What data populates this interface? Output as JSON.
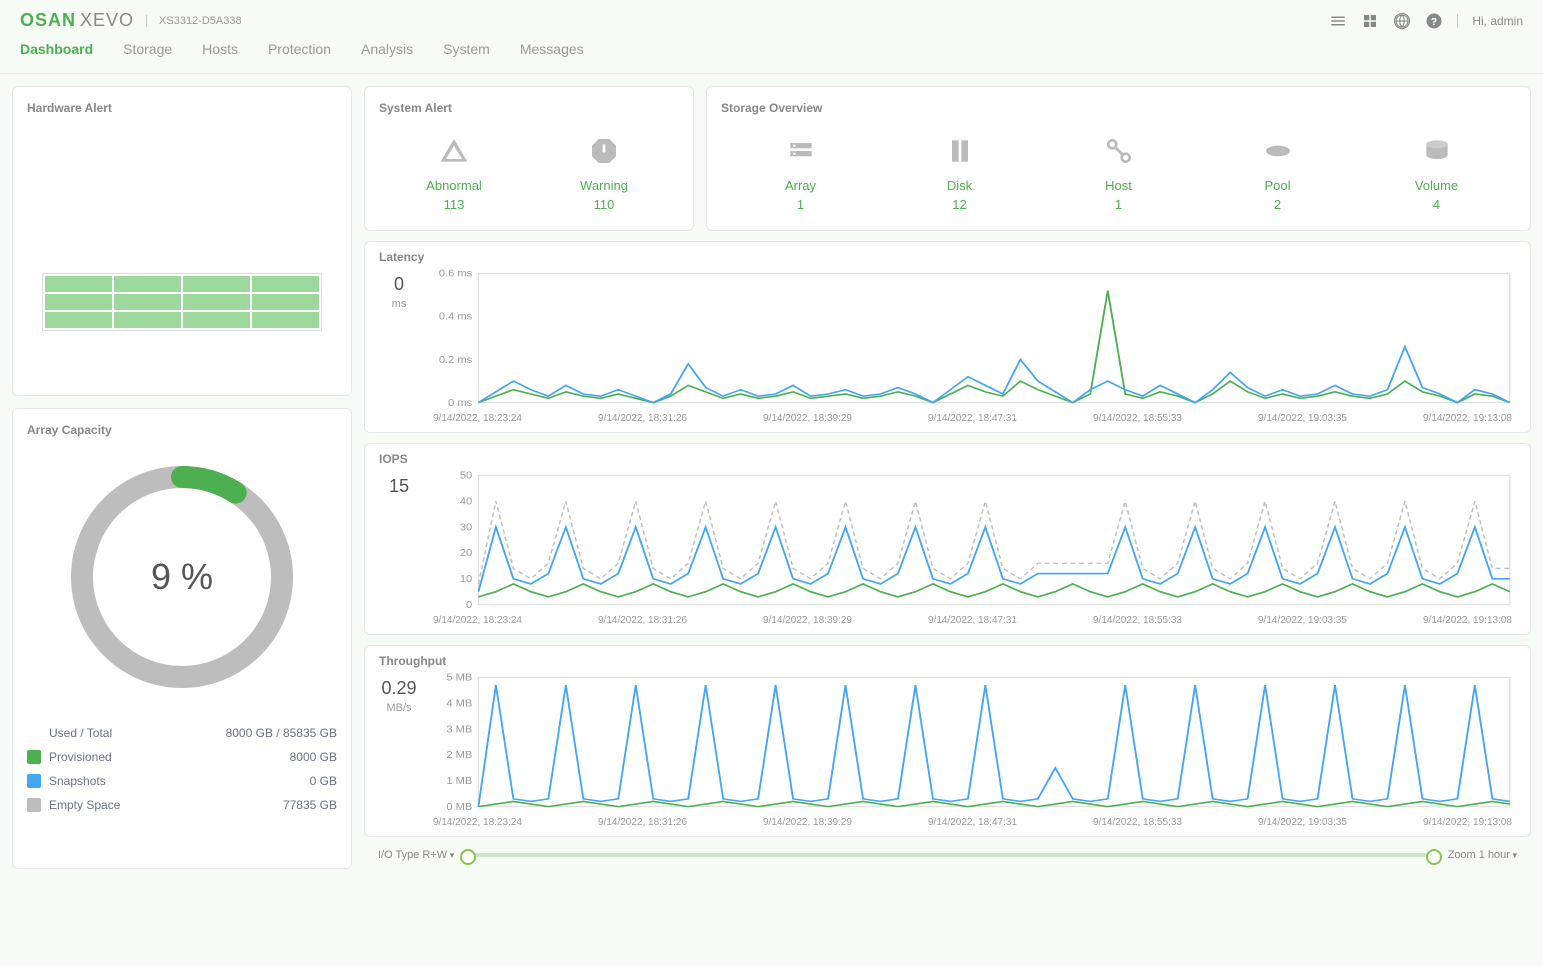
{
  "header": {
    "brand": "OSAN",
    "brand_sub": "XEVO",
    "model": "XS3312-D5A338",
    "greeting": "Hi, admin"
  },
  "nav": {
    "items": [
      "Dashboard",
      "Storage",
      "Hosts",
      "Protection",
      "Analysis",
      "System",
      "Messages"
    ],
    "active_index": 0
  },
  "hardware_alert": {
    "title": "Hardware Alert",
    "grid": {
      "rows": 3,
      "cols": 4,
      "cell_color": "#9dd89d"
    }
  },
  "system_alert": {
    "title": "System Alert",
    "items": [
      {
        "name": "Abnormal",
        "value": "113",
        "icon": "warning-triangle"
      },
      {
        "name": "Warning",
        "value": "110",
        "icon": "warning-octagon"
      }
    ]
  },
  "storage_overview": {
    "title": "Storage Overview",
    "items": [
      {
        "name": "Array",
        "value": "1",
        "icon": "array"
      },
      {
        "name": "Disk",
        "value": "12",
        "icon": "disk"
      },
      {
        "name": "Host",
        "value": "1",
        "icon": "host"
      },
      {
        "name": "Pool",
        "value": "2",
        "icon": "pool"
      },
      {
        "name": "Volume",
        "value": "4",
        "icon": "volume"
      }
    ]
  },
  "capacity": {
    "title": "Array Capacity",
    "percent_label": "9 %",
    "percent": 9,
    "used_total_label": "Used / Total",
    "used_total_value": "8000 GB / 85835 GB",
    "legend": [
      {
        "label": "Provisioned",
        "value": "8000 GB",
        "color": "#4caf50"
      },
      {
        "label": "Snapshots",
        "value": "0 GB",
        "color": "#42a5f5"
      },
      {
        "label": "Empty Space",
        "value": "77835 GB",
        "color": "#bdbdbd"
      }
    ],
    "donut": {
      "stroke_width": 22,
      "bg_color": "#bdbdbd",
      "fg_color": "#4caf50"
    }
  },
  "charts": {
    "x_labels": [
      "9/14/2022, 18:23:24",
      "9/14/2022, 18:31:26",
      "9/14/2022, 18:39:29",
      "9/14/2022, 18:47:31",
      "9/14/2022, 18:55:33",
      "9/14/2022, 19:03:35",
      "9/14/2022, 19:13:08"
    ],
    "latency": {
      "title": "Latency",
      "current": "0",
      "unit": "ms",
      "ylim": [
        0,
        0.6
      ],
      "ytick_step": 0.2,
      "ytick_suffix": " ms",
      "series": [
        {
          "name": "green",
          "color": "#4caf50",
          "width": 1.5,
          "values": [
            0,
            0.03,
            0.06,
            0.04,
            0.02,
            0.05,
            0.03,
            0.02,
            0.04,
            0.02,
            0,
            0.03,
            0.08,
            0.05,
            0.02,
            0.04,
            0.02,
            0.03,
            0.05,
            0.02,
            0.03,
            0.04,
            0.02,
            0.03,
            0.05,
            0.03,
            0,
            0.04,
            0.08,
            0.05,
            0.03,
            0.1,
            0.06,
            0.03,
            0,
            0.04,
            0.52,
            0.04,
            0.02,
            0.05,
            0.03,
            0,
            0.04,
            0.1,
            0.05,
            0.02,
            0.04,
            0.02,
            0.03,
            0.05,
            0.03,
            0.02,
            0.04,
            0.1,
            0.05,
            0.03,
            0,
            0.04,
            0.03,
            0
          ]
        },
        {
          "name": "blue",
          "color": "#42a5f5",
          "width": 1.5,
          "values": [
            0,
            0.05,
            0.1,
            0.06,
            0.03,
            0.08,
            0.04,
            0.03,
            0.06,
            0.03,
            0,
            0.04,
            0.18,
            0.07,
            0.03,
            0.06,
            0.03,
            0.04,
            0.08,
            0.03,
            0.04,
            0.06,
            0.03,
            0.04,
            0.07,
            0.04,
            0,
            0.06,
            0.12,
            0.08,
            0.04,
            0.2,
            0.1,
            0.05,
            0,
            0.06,
            0.1,
            0.06,
            0.03,
            0.08,
            0.04,
            0,
            0.06,
            0.14,
            0.07,
            0.03,
            0.06,
            0.03,
            0.04,
            0.08,
            0.04,
            0.03,
            0.06,
            0.26,
            0.07,
            0.04,
            0,
            0.06,
            0.04,
            0
          ]
        }
      ]
    },
    "iops": {
      "title": "IOPS",
      "current": "15",
      "unit": "",
      "ylim": [
        0,
        50
      ],
      "ytick_step": 10,
      "ytick_suffix": "",
      "series": [
        {
          "name": "green",
          "color": "#4caf50",
          "width": 1.5,
          "values": [
            3,
            5,
            8,
            5,
            3,
            5,
            8,
            5,
            3,
            5,
            8,
            5,
            3,
            5,
            8,
            5,
            3,
            5,
            8,
            5,
            3,
            5,
            8,
            5,
            3,
            5,
            8,
            5,
            3,
            5,
            8,
            5,
            3,
            5,
            8,
            5,
            3,
            5,
            8,
            5,
            3,
            5,
            8,
            5,
            3,
            5,
            8,
            5,
            3,
            5,
            8,
            5,
            3,
            5,
            8,
            5,
            3,
            5,
            8,
            5
          ]
        },
        {
          "name": "blue",
          "color": "#42a5f5",
          "width": 1.5,
          "values": [
            5,
            30,
            10,
            8,
            12,
            30,
            10,
            8,
            12,
            30,
            10,
            8,
            12,
            30,
            10,
            8,
            12,
            30,
            10,
            8,
            12,
            30,
            10,
            8,
            12,
            30,
            10,
            8,
            12,
            30,
            10,
            8,
            12,
            12,
            12,
            12,
            12,
            30,
            10,
            8,
            12,
            30,
            10,
            8,
            12,
            30,
            10,
            8,
            12,
            30,
            10,
            8,
            12,
            30,
            10,
            8,
            12,
            30,
            10,
            10
          ]
        },
        {
          "name": "gray",
          "color": "#bdbdbd",
          "width": 1.2,
          "dash": "4,3",
          "values": [
            8,
            40,
            14,
            10,
            16,
            40,
            14,
            10,
            16,
            40,
            14,
            10,
            16,
            40,
            14,
            10,
            16,
            40,
            14,
            10,
            16,
            40,
            14,
            10,
            16,
            40,
            14,
            10,
            16,
            40,
            14,
            10,
            16,
            16,
            16,
            16,
            16,
            40,
            14,
            10,
            16,
            40,
            14,
            10,
            16,
            40,
            14,
            10,
            16,
            40,
            14,
            10,
            16,
            40,
            14,
            10,
            16,
            40,
            14,
            14
          ]
        }
      ]
    },
    "throughput": {
      "title": "Throughput",
      "current": "0.29",
      "unit": "MB/s",
      "ylim": [
        0,
        5
      ],
      "ytick_step": 1,
      "ytick_suffix": " MB",
      "series": [
        {
          "name": "green",
          "color": "#4caf50",
          "width": 1.5,
          "values": [
            0,
            0.1,
            0.2,
            0.1,
            0,
            0.1,
            0.2,
            0.1,
            0,
            0.1,
            0.2,
            0.1,
            0,
            0.1,
            0.2,
            0.1,
            0,
            0.1,
            0.2,
            0.1,
            0,
            0.1,
            0.2,
            0.1,
            0,
            0.1,
            0.2,
            0.1,
            0,
            0.1,
            0.2,
            0.1,
            0,
            0.1,
            0.2,
            0.1,
            0,
            0.1,
            0.2,
            0.1,
            0,
            0.1,
            0.2,
            0.1,
            0,
            0.1,
            0.2,
            0.1,
            0,
            0.1,
            0.2,
            0.1,
            0,
            0.1,
            0.2,
            0.1,
            0,
            0.1,
            0.2,
            0.1
          ]
        },
        {
          "name": "blue",
          "color": "#42a5f5",
          "width": 1.5,
          "values": [
            0,
            4.7,
            0.3,
            0.2,
            0.3,
            4.7,
            0.3,
            0.2,
            0.3,
            4.7,
            0.3,
            0.2,
            0.3,
            4.7,
            0.3,
            0.2,
            0.3,
            4.7,
            0.3,
            0.2,
            0.3,
            4.7,
            0.3,
            0.2,
            0.3,
            4.7,
            0.3,
            0.2,
            0.3,
            4.7,
            0.3,
            0.2,
            0.3,
            1.5,
            0.3,
            0.2,
            0.3,
            4.7,
            0.3,
            0.2,
            0.3,
            4.7,
            0.3,
            0.2,
            0.3,
            4.7,
            0.3,
            0.2,
            0.3,
            4.7,
            0.3,
            0.2,
            0.3,
            4.7,
            0.3,
            0.2,
            0.3,
            4.7,
            0.3,
            0.2
          ]
        }
      ]
    }
  },
  "footer": {
    "io_type_label": "I/O Type R+W",
    "zoom_label": "Zoom 1 hour"
  }
}
